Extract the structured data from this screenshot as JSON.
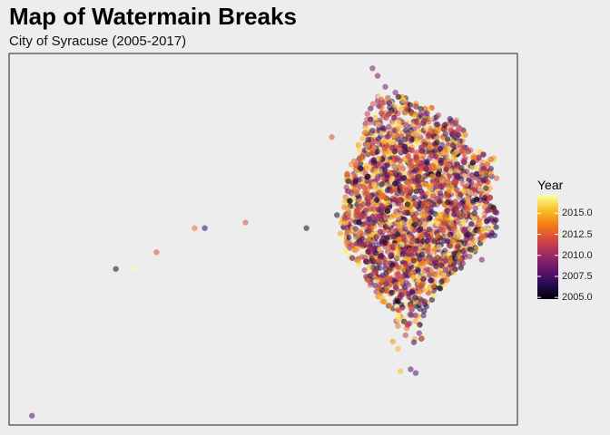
{
  "chart_data": {
    "type": "scatter",
    "title": "Map of Watermain Breaks",
    "subtitle": "City of Syracuse (2005-2017)",
    "xlabel": "",
    "ylabel": "",
    "grid": false,
    "legend": {
      "title": "Year",
      "placement": "right",
      "kind": "continuous-colorbar",
      "range": [
        2005,
        2017
      ],
      "ticks": [
        2005.0,
        2007.5,
        2010.0,
        2012.5,
        2015.0
      ],
      "tick_labels": [
        "2005.0",
        "2007.5",
        "2010.0",
        "2012.5",
        "2015.0"
      ],
      "palette": [
        "#000004",
        "#280b54",
        "#65156e",
        "#9f2a63",
        "#d44842",
        "#f57d15",
        "#fac127",
        "#fcffa4"
      ]
    },
    "xlim": [
      0,
      100
    ],
    "ylim": [
      0,
      100
    ],
    "marker_opacity": 0.55,
    "outlier_points": [
      {
        "x": 4.5,
        "y": 2.5,
        "year": 2008
      },
      {
        "x": 21.0,
        "y": 42.0,
        "year": 2006
      },
      {
        "x": 24.5,
        "y": 42.0,
        "year": 2017
      },
      {
        "x": 29.0,
        "y": 46.5,
        "year": 2012
      },
      {
        "x": 36.5,
        "y": 53.0,
        "year": 2013
      },
      {
        "x": 38.5,
        "y": 53.0,
        "year": 2007
      },
      {
        "x": 46.5,
        "y": 54.5,
        "year": 2012
      },
      {
        "x": 58.5,
        "y": 53.0,
        "year": 2006
      },
      {
        "x": 63.5,
        "y": 77.5,
        "year": 2012
      },
      {
        "x": 64.5,
        "y": 56.5,
        "year": 2006
      },
      {
        "x": 71.5,
        "y": 96.0,
        "year": 2009
      },
      {
        "x": 72.5,
        "y": 94.0,
        "year": 2009
      },
      {
        "x": 74.0,
        "y": 91.0,
        "year": 2009
      },
      {
        "x": 76.0,
        "y": 89.5,
        "year": 2009
      },
      {
        "x": 75.5,
        "y": 22.5,
        "year": 2014
      },
      {
        "x": 76.5,
        "y": 20.5,
        "year": 2015
      },
      {
        "x": 77.0,
        "y": 14.5,
        "year": 2015
      },
      {
        "x": 79.0,
        "y": 15.0,
        "year": 2008
      },
      {
        "x": 80.0,
        "y": 14.0,
        "year": 2008
      },
      {
        "x": 93.0,
        "y": 44.5,
        "year": 2009
      },
      {
        "x": 95.5,
        "y": 51.0,
        "year": 2007
      },
      {
        "x": 94.5,
        "y": 61.0,
        "year": 2012
      }
    ],
    "cluster": {
      "description": "Dense cloud of several thousand break locations in the eastern part of the plot, years spanning 2005-2017",
      "x_range": [
        64,
        96
      ],
      "y_range": [
        14,
        90
      ],
      "approx_count": 2600,
      "outline": [
        [
          72,
          89
        ],
        [
          76,
          89
        ],
        [
          80,
          87
        ],
        [
          84,
          85
        ],
        [
          88,
          82
        ],
        [
          90,
          79
        ],
        [
          89.5,
          75
        ],
        [
          92,
          74
        ],
        [
          95.5,
          72
        ],
        [
          96,
          66
        ],
        [
          94.5,
          63
        ],
        [
          97,
          53
        ],
        [
          93,
          49
        ],
        [
          91,
          45
        ],
        [
          88,
          41
        ],
        [
          85,
          37
        ],
        [
          83,
          33
        ],
        [
          81,
          28
        ],
        [
          81.5,
          22
        ],
        [
          80.5,
          17
        ],
        [
          77.5,
          16
        ],
        [
          77,
          22
        ],
        [
          76,
          28
        ],
        [
          73.5,
          33
        ],
        [
          70.5,
          38
        ],
        [
          68.5,
          42
        ],
        [
          66,
          47
        ],
        [
          65,
          52
        ],
        [
          65.5,
          57
        ],
        [
          66,
          63
        ],
        [
          66.5,
          68
        ],
        [
          68,
          72
        ],
        [
          69,
          77
        ],
        [
          70,
          83
        ]
      ]
    }
  }
}
